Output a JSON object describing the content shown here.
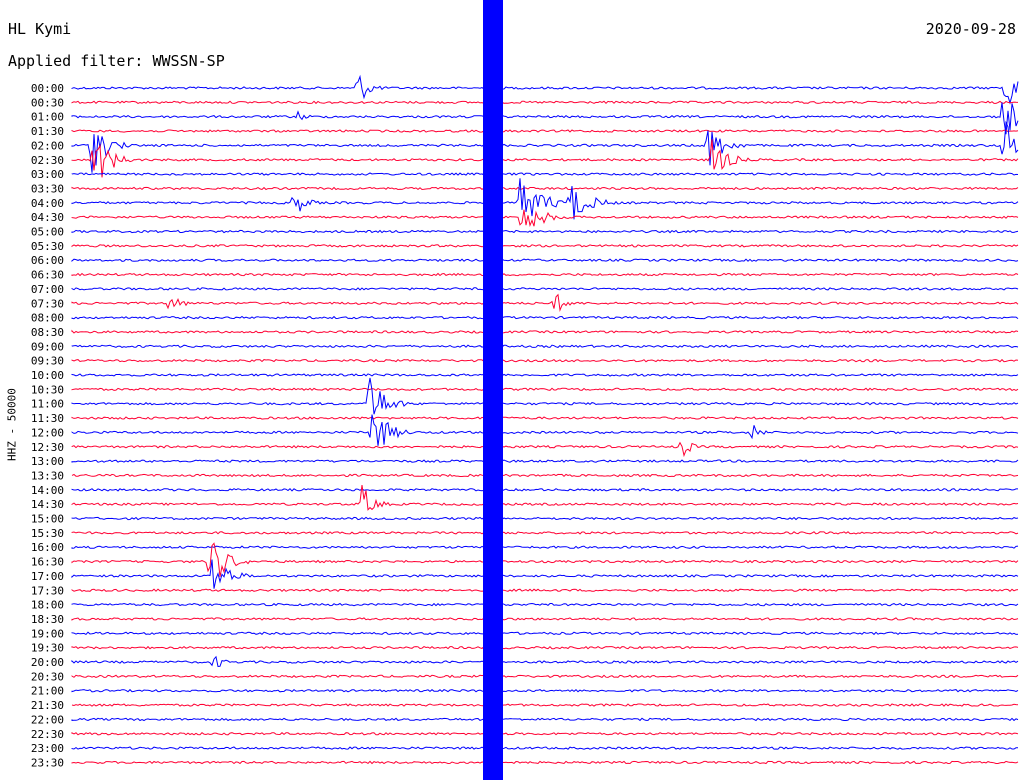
{
  "header": {
    "station": "HL Kymi",
    "date": "2020-09-28",
    "filter_label": "Applied filter: WWSSN-SP"
  },
  "chart_data": {
    "type": "line",
    "ylabel": "HHZ - 50000",
    "colors": [
      "#0000ff",
      "#ff0033"
    ],
    "time_labels": [
      "00:00",
      "00:30",
      "01:00",
      "01:30",
      "02:00",
      "02:30",
      "03:00",
      "03:30",
      "04:00",
      "04:30",
      "05:00",
      "05:30",
      "06:00",
      "06:30",
      "07:00",
      "07:30",
      "08:00",
      "08:30",
      "09:00",
      "09:30",
      "10:00",
      "10:30",
      "11:00",
      "11:30",
      "12:00",
      "12:30",
      "13:00",
      "13:30",
      "14:00",
      "14:30",
      "15:00",
      "15:30",
      "16:00",
      "16:30",
      "17:00",
      "17:30",
      "18:00",
      "18:30",
      "19:00",
      "19:30",
      "20:00",
      "20:30",
      "21:00",
      "21:30",
      "22:00",
      "22:30",
      "23:00",
      "23:30"
    ]
  }
}
